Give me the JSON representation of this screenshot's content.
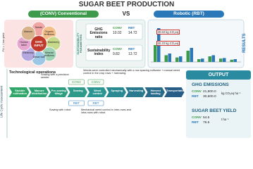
{
  "title": "SUGAR BEET PRODUCTION",
  "header": {
    "conv": "(CONV) Conventional",
    "vs": "VS",
    "rbt": "Robotic (RBT)"
  },
  "inputs": {
    "center": "GHG INPUT",
    "items": [
      "Seeds",
      "Organic fertilizers",
      "Machinery",
      "Mineral fertilizers",
      "Diesel fuel",
      "Electricity",
      "Human labor",
      "Manure"
    ],
    "fu": "FU = 1 ton yield"
  },
  "side_label": "Life Cycle Assessment",
  "sustainability": {
    "label": "SUSTAINABILITY PARAMETERS",
    "rows": [
      {
        "name": "GHG Emissions ratio",
        "conv": "CONV",
        "conv_value": "10.02",
        "rbt": "RBT",
        "rbt_value": "14.72"
      },
      {
        "name": "Sustainability index",
        "conv": "CONV",
        "conv_value": "9.82",
        "rbt": "RBT",
        "rbt_value": "13.72"
      }
    ]
  },
  "results": {
    "label": "RESULTS",
    "annotations": [
      "30.63 kg CO₂eq",
      "60.23 kg CO₂eq"
    ],
    "conv_values": [
      30,
      12,
      8,
      20,
      5,
      10,
      6,
      4
    ],
    "rbt_values": [
      60,
      15,
      10,
      25,
      6,
      12,
      7,
      5
    ]
  },
  "operations": {
    "title": "Technological operations",
    "conv_tag": "CONV",
    "rbt_tag": "RBT",
    "steps": [
      "Stubble cultivation",
      "Manure distribution",
      "Pre-sowing tillage",
      "Sowing",
      "Weed control",
      "Spraying",
      "Harvesting",
      "Harvest loading",
      "Transportation"
    ],
    "conv_notes": [
      "Sowing with a precision seeder.",
      "Weeds were controlled mechanically with a row spacing cultivator + manual weed control in the crop rows + harrowing."
    ],
    "rbt_notes": [
      "Sowing with robot.",
      "Mechanical weed control in inter-rows and intra-rows with robot."
    ]
  },
  "output": {
    "title": "OUTPUT",
    "ghg": {
      "title": "GHG EMISSIONS",
      "conv": "CONV",
      "conv_value": "21,800.0",
      "rbt": "RBT",
      "rbt_value": "30,600.0",
      "unit": "kg CO₂eq ha⁻¹"
    },
    "yield": {
      "title": "SUGAR BEET YIELD",
      "conv": "CONV",
      "conv_value": "54.5",
      "rbt": "RBT",
      "rbt_value": "76.5",
      "unit": "t ha⁻¹"
    }
  }
}
